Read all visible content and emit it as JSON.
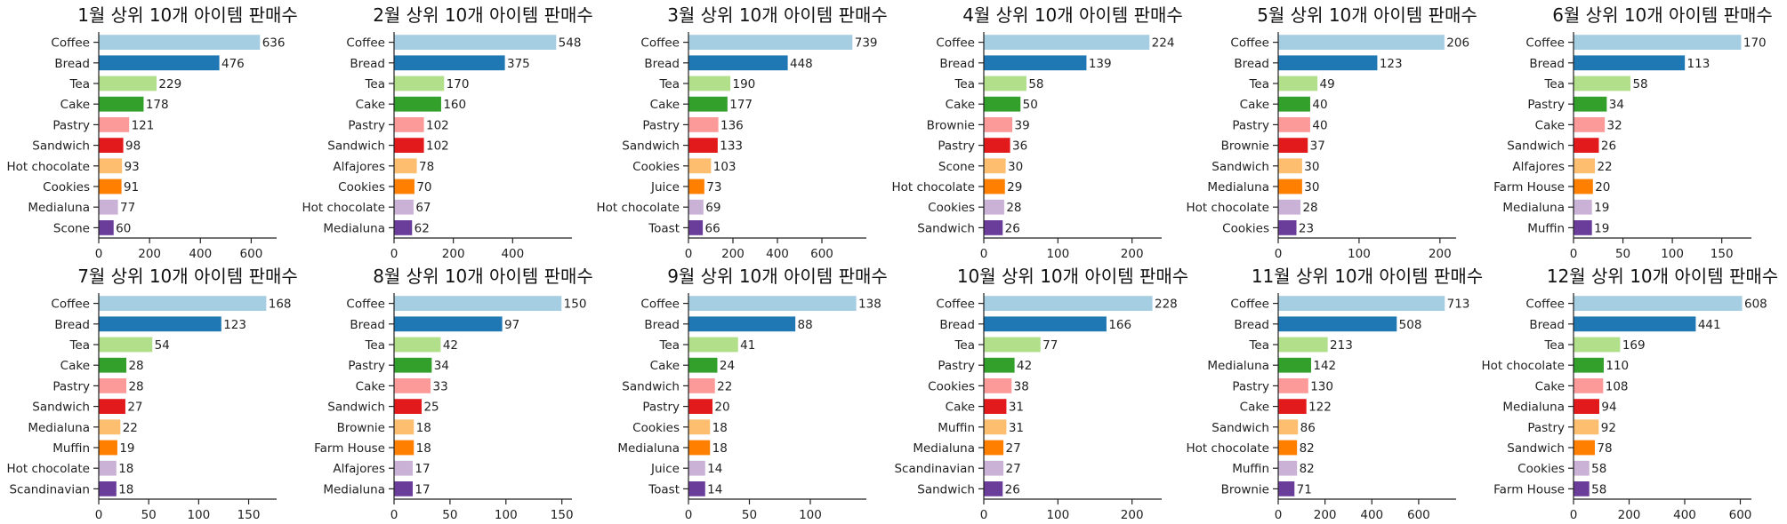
{
  "palette": [
    "#a6cee3",
    "#1f78b4",
    "#b2df8a",
    "#33a02c",
    "#fb9a99",
    "#e31a1c",
    "#fdbf6f",
    "#ff7f00",
    "#cab2d6",
    "#6a3d9a"
  ],
  "chart_data": [
    {
      "type": "bar",
      "orientation": "horizontal",
      "title": "1월 상위 10개 아이템 판매수",
      "categories": [
        "Coffee",
        "Bread",
        "Tea",
        "Cake",
        "Pastry",
        "Sandwich",
        "Hot chocolate",
        "Cookies",
        "Medialuna",
        "Scone"
      ],
      "values": [
        636,
        476,
        229,
        178,
        121,
        98,
        93,
        91,
        77,
        60
      ],
      "xlim": [
        0,
        700
      ],
      "xticks": [
        0,
        200,
        400,
        600
      ]
    },
    {
      "type": "bar",
      "orientation": "horizontal",
      "title": "2월 상위 10개 아이템 판매수",
      "categories": [
        "Coffee",
        "Bread",
        "Tea",
        "Cake",
        "Pastry",
        "Sandwich",
        "Alfajores",
        "Cookies",
        "Hot chocolate",
        "Medialuna"
      ],
      "values": [
        548,
        375,
        170,
        160,
        102,
        102,
        78,
        70,
        67,
        62
      ],
      "xlim": [
        0,
        600
      ],
      "xticks": [
        0,
        200,
        400
      ]
    },
    {
      "type": "bar",
      "orientation": "horizontal",
      "title": "3월 상위 10개 아이템 판매수",
      "categories": [
        "Coffee",
        "Bread",
        "Tea",
        "Cake",
        "Pastry",
        "Sandwich",
        "Cookies",
        "Juice",
        "Hot chocolate",
        "Toast"
      ],
      "values": [
        739,
        448,
        190,
        177,
        136,
        133,
        103,
        73,
        69,
        66
      ],
      "xlim": [
        0,
        800
      ],
      "xticks": [
        0,
        200,
        400,
        600
      ]
    },
    {
      "type": "bar",
      "orientation": "horizontal",
      "title": "4월 상위 10개 아이템 판매수",
      "categories": [
        "Coffee",
        "Bread",
        "Tea",
        "Cake",
        "Brownie",
        "Pastry",
        "Scone",
        "Hot chocolate",
        "Cookies",
        "Sandwich"
      ],
      "values": [
        224,
        139,
        58,
        50,
        39,
        36,
        30,
        29,
        28,
        26
      ],
      "xlim": [
        0,
        240
      ],
      "xticks": [
        0,
        100,
        200
      ]
    },
    {
      "type": "bar",
      "orientation": "horizontal",
      "title": "5월 상위 10개 아이템 판매수",
      "categories": [
        "Coffee",
        "Bread",
        "Tea",
        "Cake",
        "Pastry",
        "Brownie",
        "Sandwich",
        "Medialuna",
        "Hot chocolate",
        "Cookies"
      ],
      "values": [
        206,
        123,
        49,
        40,
        40,
        37,
        30,
        30,
        28,
        23
      ],
      "xlim": [
        0,
        220
      ],
      "xticks": [
        0,
        100,
        200
      ]
    },
    {
      "type": "bar",
      "orientation": "horizontal",
      "title": "6월 상위 10개 아이템 판매수",
      "categories": [
        "Coffee",
        "Bread",
        "Tea",
        "Pastry",
        "Cake",
        "Sandwich",
        "Alfajores",
        "Farm House",
        "Medialuna",
        "Muffin"
      ],
      "values": [
        170,
        113,
        58,
        34,
        32,
        26,
        22,
        20,
        19,
        19
      ],
      "xlim": [
        0,
        180
      ],
      "xticks": [
        0,
        50,
        100,
        150
      ]
    },
    {
      "type": "bar",
      "orientation": "horizontal",
      "title": "7월 상위 10개 아이템 판매수",
      "categories": [
        "Coffee",
        "Bread",
        "Tea",
        "Cake",
        "Pastry",
        "Sandwich",
        "Medialuna",
        "Muffin",
        "Hot chocolate",
        "Scandinavian"
      ],
      "values": [
        168,
        123,
        54,
        28,
        28,
        27,
        22,
        19,
        18,
        18
      ],
      "xlim": [
        0,
        178
      ],
      "xticks": [
        0,
        50,
        100,
        150
      ]
    },
    {
      "type": "bar",
      "orientation": "horizontal",
      "title": "8월 상위 10개 아이템 판매수",
      "categories": [
        "Coffee",
        "Bread",
        "Tea",
        "Pastry",
        "Cake",
        "Sandwich",
        "Brownie",
        "Farm House",
        "Alfajores",
        "Medialuna"
      ],
      "values": [
        150,
        97,
        42,
        34,
        33,
        25,
        18,
        18,
        17,
        17
      ],
      "xlim": [
        0,
        159
      ],
      "xticks": [
        0,
        50,
        100,
        150
      ]
    },
    {
      "type": "bar",
      "orientation": "horizontal",
      "title": "9월 상위 10개 아이템 판매수",
      "categories": [
        "Coffee",
        "Bread",
        "Tea",
        "Cake",
        "Sandwich",
        "Pastry",
        "Cookies",
        "Medialuna",
        "Juice",
        "Toast"
      ],
      "values": [
        138,
        88,
        41,
        24,
        22,
        20,
        18,
        18,
        14,
        14
      ],
      "xlim": [
        0,
        146
      ],
      "xticks": [
        0,
        50,
        100
      ]
    },
    {
      "type": "bar",
      "orientation": "horizontal",
      "title": "10월 상위 10개 아이템 판매수",
      "categories": [
        "Coffee",
        "Bread",
        "Tea",
        "Pastry",
        "Cookies",
        "Cake",
        "Muffin",
        "Medialuna",
        "Scandinavian",
        "Sandwich"
      ],
      "values": [
        228,
        166,
        77,
        42,
        38,
        31,
        31,
        27,
        27,
        26
      ],
      "xlim": [
        0,
        240
      ],
      "xticks": [
        0,
        100,
        200
      ]
    },
    {
      "type": "bar",
      "orientation": "horizontal",
      "title": "11월 상위 10개 아이템 판매수",
      "categories": [
        "Coffee",
        "Bread",
        "Tea",
        "Medialuna",
        "Pastry",
        "Cake",
        "Sandwich",
        "Hot chocolate",
        "Muffin",
        "Brownie"
      ],
      "values": [
        713,
        508,
        213,
        142,
        130,
        122,
        86,
        82,
        82,
        71
      ],
      "xlim": [
        0,
        760
      ],
      "xticks": [
        0,
        200,
        400,
        600
      ]
    },
    {
      "type": "bar",
      "orientation": "horizontal",
      "title": "12월 상위 10개 아이템 판매수",
      "categories": [
        "Coffee",
        "Bread",
        "Tea",
        "Hot chocolate",
        "Cake",
        "Medialuna",
        "Pastry",
        "Sandwich",
        "Cookies",
        "Farm House"
      ],
      "values": [
        608,
        441,
        169,
        110,
        108,
        94,
        92,
        78,
        58,
        58
      ],
      "xlim": [
        0,
        640
      ],
      "xticks": [
        0,
        200,
        400,
        600
      ]
    }
  ]
}
